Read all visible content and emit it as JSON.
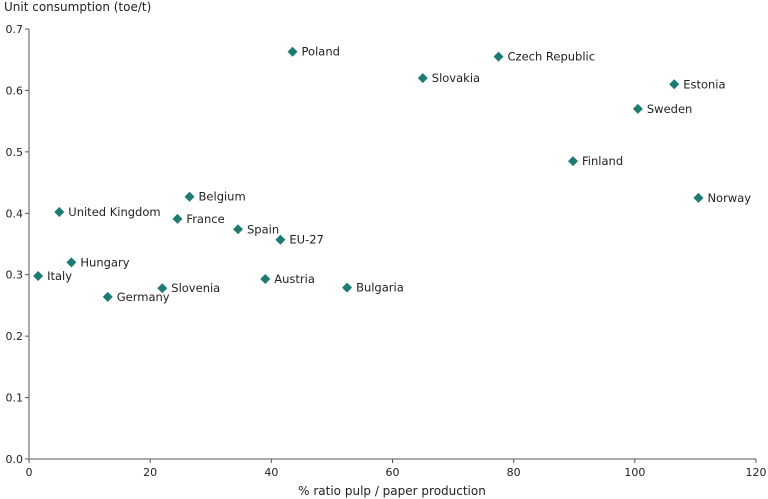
{
  "chart_data": {
    "type": "scatter",
    "title": "",
    "xlabel": "% ratio pulp / paper production",
    "ylabel": "Unit consumption (toe/t)",
    "xlim": [
      0,
      120
    ],
    "ylim": [
      0,
      0.7
    ],
    "xticks": [
      "0",
      "20",
      "40",
      "60",
      "80",
      "100",
      "120"
    ],
    "yticks": [
      "0.0",
      "0.1",
      "0.2",
      "0.3",
      "0.4",
      "0.5",
      "0.6",
      "0.7"
    ],
    "grid": false,
    "marker_color": "#1e7b72",
    "points": [
      {
        "label": "Poland",
        "x": 43.5,
        "y": 0.663
      },
      {
        "label": "Czech Republic",
        "x": 77.5,
        "y": 0.655
      },
      {
        "label": "Slovakia",
        "x": 65,
        "y": 0.62
      },
      {
        "label": "Estonia",
        "x": 106.5,
        "y": 0.61
      },
      {
        "label": "Sweden",
        "x": 100.5,
        "y": 0.57
      },
      {
        "label": "Finland",
        "x": 89.8,
        "y": 0.485
      },
      {
        "label": "Norway",
        "x": 110.5,
        "y": 0.425
      },
      {
        "label": "Belgium",
        "x": 26.5,
        "y": 0.427
      },
      {
        "label": "United Kingdom",
        "x": 5,
        "y": 0.402
      },
      {
        "label": "France",
        "x": 24.5,
        "y": 0.391
      },
      {
        "label": "Spain",
        "x": 34.5,
        "y": 0.374
      },
      {
        "label": "EU-27",
        "x": 41.5,
        "y": 0.357
      },
      {
        "label": "Hungary",
        "x": 7,
        "y": 0.32
      },
      {
        "label": "Italy",
        "x": 1.5,
        "y": 0.298
      },
      {
        "label": "Austria",
        "x": 39,
        "y": 0.293
      },
      {
        "label": "Bulgaria",
        "x": 52.5,
        "y": 0.279
      },
      {
        "label": "Slovenia",
        "x": 22,
        "y": 0.278
      },
      {
        "label": "Germany",
        "x": 13,
        "y": 0.264
      }
    ]
  }
}
